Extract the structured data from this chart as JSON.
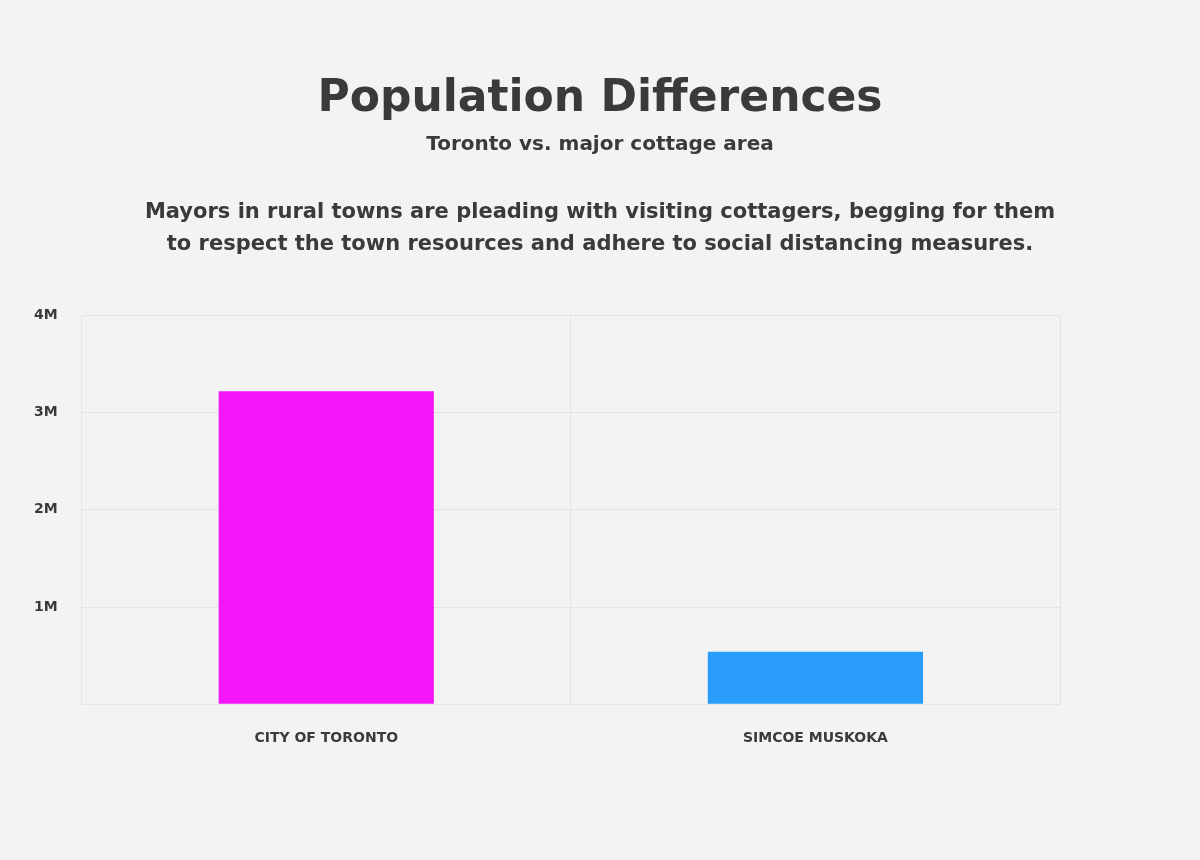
{
  "chart_data": {
    "type": "bar",
    "title": "Population Differences",
    "subtitle": "Toronto vs. major cottage area",
    "annotations": [
      "Mayors in rural towns are pleading with visiting cottagers, begging for them to respect the town resources and adhere to social distancing measures."
    ],
    "categories": [
      "CITY OF TORONTO",
      "SIMCOE MUSKOKA"
    ],
    "values": [
      3.22,
      0.54
    ],
    "colors": [
      "#f516f8",
      "#2a9cfa"
    ],
    "ylim": [
      0,
      4
    ],
    "yticks": [
      {
        "value": 1,
        "label": "1M"
      },
      {
        "value": 2,
        "label": "2M"
      },
      {
        "value": 3,
        "label": "3M"
      },
      {
        "value": 4,
        "label": "4M"
      }
    ],
    "grid": true
  }
}
